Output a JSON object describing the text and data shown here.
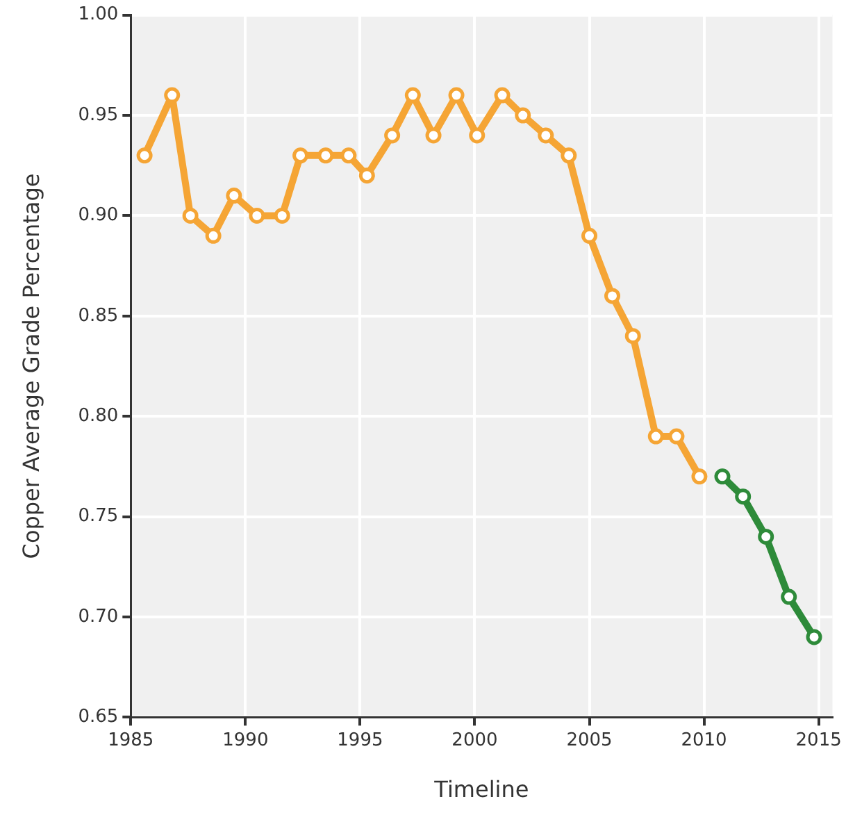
{
  "chart_data": {
    "type": "line",
    "xlabel": "Timeline",
    "ylabel": "Copper Average Grade Percentage",
    "xlim": [
      1985,
      2015.6
    ],
    "xticks": [
      1985,
      1990,
      1995,
      2000,
      2005,
      2010,
      2015
    ],
    "ylim": [
      0.65,
      1.0
    ],
    "yticks": [
      {
        "value": 0.65,
        "label": "0.65"
      },
      {
        "value": 0.7,
        "label": "0.70"
      },
      {
        "value": 0.75,
        "label": "0.75"
      },
      {
        "value": 0.8,
        "label": "0.80"
      },
      {
        "value": 0.85,
        "label": "0.85"
      },
      {
        "value": 0.9,
        "label": "0.90"
      },
      {
        "value": 0.95,
        "label": "0.95"
      },
      {
        "value": 1.0,
        "label": "1.00"
      }
    ],
    "grid": true,
    "marker": "circle",
    "line_style": "solid",
    "series": [
      {
        "color": "#f5a535",
        "x": [
          1985.6,
          1986.8,
          1987.6,
          1988.6,
          1989.5,
          1990.5,
          1991.6,
          1992.4,
          1993.5,
          1994.5,
          1995.3,
          1996.4,
          1997.3,
          1998.2,
          1999.2,
          2000.1,
          2001.2,
          2002.1,
          2003.1,
          2004.1,
          2005.0,
          2006.0,
          2006.9,
          2007.9,
          2008.8,
          2009.8
        ],
        "values": [
          0.93,
          0.96,
          0.9,
          0.89,
          0.91,
          0.9,
          0.9,
          0.93,
          0.93,
          0.93,
          0.92,
          0.94,
          0.96,
          0.94,
          0.96,
          0.94,
          0.96,
          0.95,
          0.94,
          0.93,
          0.89,
          0.86,
          0.84,
          0.79,
          0.79,
          0.77
        ]
      },
      {
        "color": "#2e8b3a",
        "x": [
          2010.8,
          2011.7,
          2012.7,
          2013.7,
          2014.8
        ],
        "values": [
          0.77,
          0.76,
          0.74,
          0.71,
          0.69
        ]
      }
    ]
  }
}
